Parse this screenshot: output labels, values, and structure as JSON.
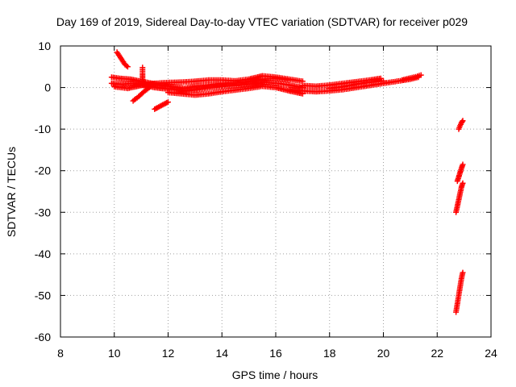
{
  "chart_data": {
    "type": "scatter",
    "title": "Day 169 of 2019, Sidereal Day-to-day VTEC variation (SDTVAR) for receiver p029",
    "xlabel": "GPS time / hours",
    "ylabel": "SDTVAR / TECUs",
    "xlim": [
      8,
      24
    ],
    "ylim": [
      -60,
      10
    ],
    "xticks": [
      8,
      10,
      12,
      14,
      16,
      18,
      20,
      22,
      24
    ],
    "yticks": [
      -60,
      -50,
      -40,
      -30,
      -20,
      -10,
      0,
      10
    ],
    "grid": true,
    "marker": "+",
    "series": [
      {
        "color": "#ff0000",
        "segments": [
          [
            [
              9.9,
              2.5
            ],
            [
              10.2,
              2.2
            ],
            [
              10.6,
              2.0
            ],
            [
              11.0,
              1.5
            ],
            [
              11.4,
              1.0
            ],
            [
              11.8,
              0.5
            ],
            [
              12.2,
              0.2
            ],
            [
              12.6,
              -0.2
            ],
            [
              13.0,
              0.3
            ],
            [
              13.5,
              0.6
            ],
            [
              14.0,
              1.0
            ],
            [
              14.5,
              1.2
            ],
            [
              15.0,
              1.5
            ],
            [
              15.5,
              2.0
            ],
            [
              16.0,
              2.2
            ],
            [
              16.5,
              1.8
            ]
          ],
          [
            [
              9.9,
              1.0
            ],
            [
              10.3,
              0.8
            ],
            [
              10.7,
              1.0
            ],
            [
              11.1,
              0.5
            ],
            [
              11.5,
              0.0
            ],
            [
              11.9,
              -0.3
            ],
            [
              12.3,
              -0.5
            ],
            [
              12.7,
              -0.8
            ],
            [
              13.1,
              -0.5
            ],
            [
              13.6,
              0.0
            ],
            [
              14.1,
              0.3
            ],
            [
              14.6,
              0.5
            ],
            [
              15.1,
              0.8
            ],
            [
              15.6,
              1.2
            ],
            [
              16.1,
              1.0
            ],
            [
              16.6,
              0.5
            ],
            [
              17.0,
              0.0
            ]
          ],
          [
            [
              10.0,
              0.2
            ],
            [
              10.5,
              -0.2
            ],
            [
              11.0,
              0.5
            ],
            [
              11.5,
              1.0
            ],
            [
              12.0,
              1.2
            ],
            [
              12.5,
              1.3
            ],
            [
              13.0,
              1.5
            ],
            [
              13.5,
              1.8
            ],
            [
              14.0,
              1.8
            ],
            [
              14.5,
              1.6
            ],
            [
              15.0,
              2.0
            ],
            [
              15.5,
              2.8
            ],
            [
              16.0,
              2.5
            ],
            [
              16.5,
              2.0
            ],
            [
              17.0,
              1.5
            ]
          ],
          [
            [
              12.0,
              -1.2
            ],
            [
              12.5,
              -1.5
            ],
            [
              13.0,
              -1.8
            ],
            [
              13.5,
              -1.5
            ],
            [
              14.0,
              -1.0
            ],
            [
              14.5,
              -0.6
            ],
            [
              15.0,
              -0.2
            ],
            [
              15.5,
              0.3
            ],
            [
              16.0,
              0.0
            ],
            [
              16.5,
              -0.8
            ],
            [
              17.0,
              -1.5
            ]
          ],
          [
            [
              16.5,
              -0.5
            ],
            [
              17.0,
              -0.8
            ],
            [
              17.5,
              -1.0
            ],
            [
              18.0,
              -0.8
            ],
            [
              18.5,
              -0.5
            ],
            [
              19.0,
              0.0
            ],
            [
              19.5,
              0.5
            ],
            [
              20.0,
              1.0
            ],
            [
              20.5,
              1.5
            ],
            [
              21.0,
              2.0
            ],
            [
              21.3,
              2.5
            ]
          ],
          [
            [
              17.0,
              0.5
            ],
            [
              17.5,
              0.3
            ],
            [
              18.0,
              0.6
            ],
            [
              18.5,
              1.0
            ],
            [
              19.0,
              1.4
            ],
            [
              19.5,
              1.8
            ],
            [
              19.9,
              2.2
            ]
          ],
          [
            [
              18.0,
              -0.2
            ],
            [
              18.5,
              0.2
            ],
            [
              19.0,
              0.8
            ],
            [
              19.5,
              1.3
            ],
            [
              20.0,
              1.6
            ]
          ],
          [
            [
              20.7,
              1.8
            ],
            [
              21.0,
              2.3
            ],
            [
              21.2,
              2.6
            ],
            [
              21.4,
              3.0
            ]
          ],
          [
            [
              10.1,
              8.5
            ],
            [
              10.2,
              7.5
            ],
            [
              10.3,
              6.5
            ],
            [
              10.4,
              5.5
            ],
            [
              10.5,
              5.0
            ]
          ],
          [
            [
              10.7,
              -3.2
            ],
            [
              10.9,
              -2.2
            ],
            [
              11.1,
              -1.0
            ],
            [
              11.3,
              0.0
            ]
          ],
          [
            [
              11.05,
              4.8
            ],
            [
              11.05,
              3.5
            ],
            [
              11.05,
              2.0
            ],
            [
              11.1,
              1.0
            ]
          ],
          [
            [
              11.5,
              -5.2
            ],
            [
              11.7,
              -4.5
            ],
            [
              11.9,
              -3.8
            ],
            [
              12.0,
              -3.5
            ]
          ],
          [
            [
              22.8,
              -10.0
            ],
            [
              22.85,
              -9.2
            ],
            [
              22.9,
              -8.5
            ],
            [
              22.95,
              -8.0
            ]
          ],
          [
            [
              22.75,
              -22.5
            ],
            [
              22.8,
              -21.5
            ],
            [
              22.85,
              -20.5
            ],
            [
              22.9,
              -19.5
            ],
            [
              22.95,
              -18.5
            ]
          ],
          [
            [
              22.7,
              -30.0
            ],
            [
              22.75,
              -28.5
            ],
            [
              22.8,
              -27.0
            ],
            [
              22.85,
              -25.5
            ],
            [
              22.9,
              -24.0
            ],
            [
              22.95,
              -23.0
            ]
          ],
          [
            [
              22.7,
              -54.0
            ],
            [
              22.75,
              -52.0
            ],
            [
              22.8,
              -50.0
            ],
            [
              22.85,
              -48.0
            ],
            [
              22.9,
              -46.0
            ],
            [
              22.95,
              -44.5
            ]
          ]
        ]
      }
    ]
  }
}
